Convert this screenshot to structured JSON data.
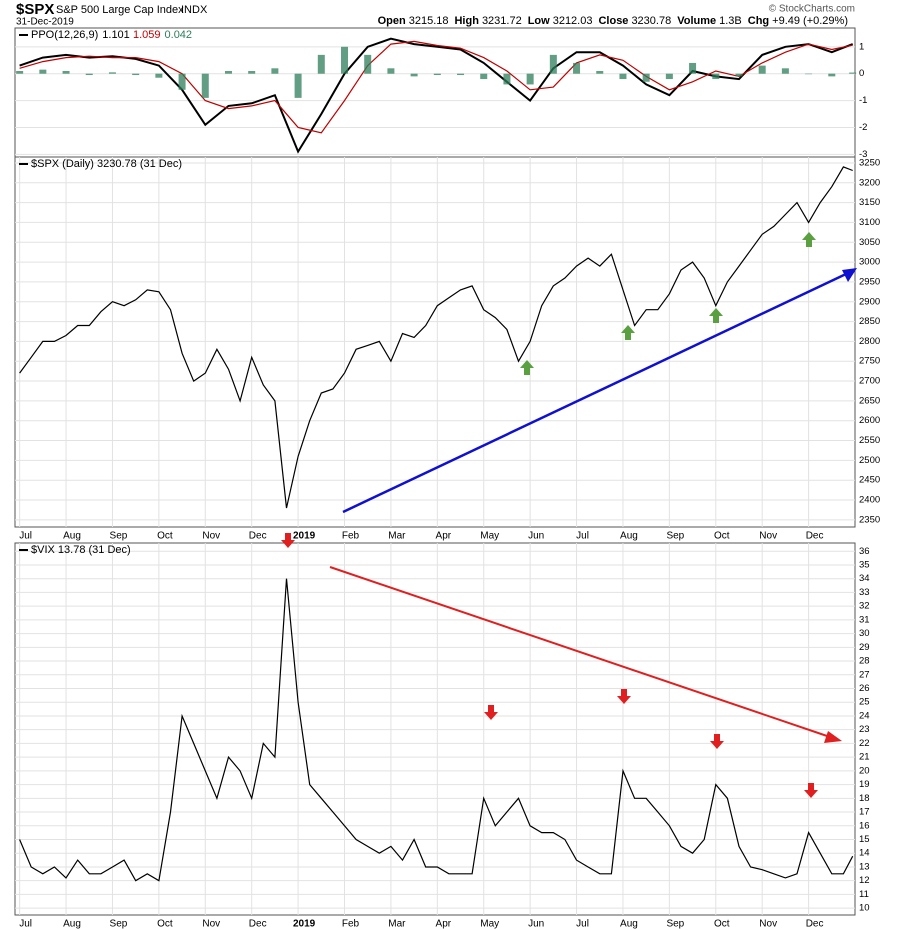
{
  "header": {
    "symbol": "$SPX",
    "name": "S&P 500 Large Cap Index",
    "exchange": "INDX",
    "date": "31-Dec-2019",
    "stats": [
      {
        "label": "Open",
        "value": "3215.18"
      },
      {
        "label": "High",
        "value": "3231.72"
      },
      {
        "label": "Low",
        "value": "3212.03"
      },
      {
        "label": "Close",
        "value": "3230.78"
      },
      {
        "label": "Volume",
        "value": "1.3B"
      },
      {
        "label": "Chg",
        "value": "+9.49 (+0.29%)"
      }
    ],
    "credit": "© StockCharts.com"
  },
  "chart_data": [
    {
      "type": "line",
      "title": "PPO(12,26,9)",
      "x": [
        0,
        0.5,
        1,
        1.5,
        2,
        2.5,
        3,
        3.5,
        4,
        4.5,
        5,
        5.5,
        6,
        6.5,
        7,
        7.5,
        8,
        8.5,
        9,
        9.5,
        10,
        10.5,
        11,
        11.5,
        12,
        12.5,
        13,
        13.5,
        14,
        14.5,
        15,
        15.5,
        16,
        16.5,
        17,
        17.5,
        17.95
      ],
      "series": [
        {
          "color": "#000000",
          "last_label": "1.101",
          "values": [
            0.3,
            0.6,
            0.7,
            0.6,
            0.65,
            0.55,
            0.3,
            -0.6,
            -1.9,
            -1.2,
            -1.1,
            -0.8,
            -2.9,
            -1.5,
            0,
            1,
            1.3,
            1.1,
            1,
            0.9,
            0.4,
            -0.3,
            -1,
            0.2,
            0.8,
            0.8,
            0.3,
            -0.4,
            -0.8,
            0.1,
            -0.1,
            -0.2,
            0.7,
            1,
            1.1,
            0.8,
            1.101
          ]
        },
        {
          "color": "#c00000",
          "last_label": "1.059",
          "values": [
            0.2,
            0.45,
            0.6,
            0.65,
            0.6,
            0.6,
            0.45,
            0,
            -1,
            -1.3,
            -1.2,
            -1,
            -2,
            -2.2,
            -1,
            0.3,
            1.1,
            1.2,
            1.05,
            0.95,
            0.6,
            0.1,
            -0.6,
            -0.5,
            0.4,
            0.7,
            0.5,
            -0.1,
            -0.6,
            -0.3,
            0.1,
            -0.1,
            0.4,
            0.8,
            1.1,
            0.9,
            1.059
          ]
        },
        {
          "color": "#2e7d5b",
          "kind": "histogram",
          "last_label": "0.042",
          "values": [
            0.1,
            0.15,
            0.1,
            -0.05,
            0.05,
            -0.05,
            -0.15,
            -0.6,
            -0.9,
            0.1,
            0.1,
            0.2,
            -0.9,
            0.7,
            1,
            0.7,
            0.2,
            -0.1,
            -0.05,
            -0.05,
            -0.2,
            -0.4,
            -0.4,
            0.7,
            0.4,
            0.1,
            -0.2,
            -0.3,
            -0.2,
            0.4,
            -0.2,
            -0.1,
            0.3,
            0.2,
            0,
            -0.1,
            0.042
          ]
        }
      ],
      "xlim": [
        -0.1,
        18.0
      ],
      "ylim": [
        -3.1,
        1.7
      ],
      "yticks": [
        -3,
        -2,
        -1,
        0,
        1
      ],
      "grid": true
    },
    {
      "type": "line",
      "title": "$SPX (Daily) 3230.78 (31 Dec)",
      "x": [
        0,
        0.25,
        0.5,
        0.75,
        1,
        1.25,
        1.5,
        1.75,
        2,
        2.25,
        2.5,
        2.75,
        3,
        3.25,
        3.5,
        3.75,
        4,
        4.25,
        4.5,
        4.75,
        5,
        5.25,
        5.5,
        5.75,
        6,
        6.25,
        6.5,
        6.75,
        7,
        7.25,
        7.5,
        7.75,
        8,
        8.25,
        8.5,
        8.75,
        9,
        9.25,
        9.5,
        9.75,
        10,
        10.25,
        10.5,
        10.75,
        11,
        11.25,
        11.5,
        11.75,
        12,
        12.25,
        12.5,
        12.75,
        13,
        13.25,
        13.5,
        13.75,
        14,
        14.25,
        14.5,
        14.75,
        15,
        15.25,
        15.5,
        15.75,
        16,
        16.25,
        16.5,
        16.75,
        17,
        17.25,
        17.5,
        17.75,
        17.95
      ],
      "series": [
        {
          "color": "#000000",
          "values": [
            2720,
            2760,
            2800,
            2800,
            2815,
            2840,
            2840,
            2875,
            2900,
            2890,
            2905,
            2930,
            2925,
            2880,
            2770,
            2700,
            2720,
            2780,
            2730,
            2650,
            2760,
            2690,
            2650,
            2380,
            2510,
            2600,
            2670,
            2680,
            2720,
            2780,
            2790,
            2800,
            2750,
            2820,
            2810,
            2840,
            2890,
            2910,
            2930,
            2940,
            2880,
            2860,
            2830,
            2750,
            2800,
            2890,
            2940,
            2960,
            2990,
            3010,
            2990,
            3020,
            2930,
            2840,
            2880,
            2880,
            2920,
            2980,
            3000,
            2960,
            2890,
            2950,
            2990,
            3030,
            3070,
            3090,
            3120,
            3150,
            3100,
            3150,
            3190,
            3240,
            3231
          ]
        }
      ],
      "xlim": [
        -0.1,
        18.0
      ],
      "ylim": [
        2332,
        3265
      ],
      "yticks": [
        2350,
        2400,
        2450,
        2500,
        2550,
        2600,
        2650,
        2700,
        2750,
        2800,
        2850,
        2900,
        2950,
        3000,
        3050,
        3100,
        3150,
        3200,
        3250
      ],
      "xticks": [
        {
          "value": 0,
          "label": "Jul"
        },
        {
          "value": 1,
          "label": "Aug"
        },
        {
          "value": 2,
          "label": "Sep"
        },
        {
          "value": 3,
          "label": "Oct"
        },
        {
          "value": 4,
          "label": "Nov"
        },
        {
          "value": 5,
          "label": "Dec"
        },
        {
          "value": 6,
          "label": "2019"
        },
        {
          "value": 7,
          "label": "Feb"
        },
        {
          "value": 8,
          "label": "Mar"
        },
        {
          "value": 9,
          "label": "Apr"
        },
        {
          "value": 10,
          "label": "May"
        },
        {
          "value": 11,
          "label": "Jun"
        },
        {
          "value": 12,
          "label": "Jul"
        },
        {
          "value": 13,
          "label": "Aug"
        },
        {
          "value": 14,
          "label": "Sep"
        },
        {
          "value": 15,
          "label": "Oct"
        },
        {
          "value": 16,
          "label": "Nov"
        },
        {
          "value": 17,
          "label": "Dec"
        }
      ],
      "grid": true
    },
    {
      "type": "line",
      "title": "$VIX 13.78 (31 Dec)",
      "x": [
        0,
        0.25,
        0.5,
        0.75,
        1,
        1.25,
        1.5,
        1.75,
        2,
        2.25,
        2.5,
        2.75,
        3,
        3.25,
        3.5,
        3.75,
        4,
        4.25,
        4.5,
        4.75,
        5,
        5.25,
        5.5,
        5.75,
        6,
        6.25,
        6.5,
        6.75,
        7,
        7.25,
        7.5,
        7.75,
        8,
        8.25,
        8.5,
        8.75,
        9,
        9.25,
        9.5,
        9.75,
        10,
        10.25,
        10.5,
        10.75,
        11,
        11.25,
        11.5,
        11.75,
        12,
        12.25,
        12.5,
        12.75,
        13,
        13.25,
        13.5,
        13.75,
        14,
        14.25,
        14.5,
        14.75,
        15,
        15.25,
        15.5,
        15.75,
        16,
        16.25,
        16.5,
        16.75,
        17,
        17.25,
        17.5,
        17.75,
        17.95
      ],
      "series": [
        {
          "color": "#000000",
          "values": [
            15,
            13,
            12.5,
            13,
            12.2,
            13.5,
            12.5,
            12.5,
            13,
            13.5,
            12,
            12.5,
            12,
            17,
            24,
            22,
            20,
            18,
            21,
            20,
            18,
            22,
            21,
            34,
            25,
            19,
            18,
            17,
            16,
            15,
            14.5,
            14,
            14.5,
            13.5,
            15,
            13,
            13,
            12.5,
            12.5,
            12.5,
            18,
            16,
            17,
            18,
            16,
            15.5,
            15.5,
            15,
            13.5,
            13,
            12.5,
            12.5,
            20,
            18,
            18,
            17,
            16,
            14.5,
            14,
            15,
            19,
            18,
            14.5,
            13,
            12.8,
            12.5,
            12.2,
            12.5,
            15.5,
            14,
            12.5,
            12.5,
            13.78
          ]
        }
      ],
      "xlim": [
        -0.1,
        18.0
      ],
      "ylim": [
        9.5,
        36.6
      ],
      "yticks": [
        10,
        11,
        12,
        13,
        14,
        15,
        16,
        17,
        18,
        19,
        20,
        21,
        22,
        23,
        24,
        25,
        26,
        27,
        28,
        29,
        30,
        31,
        32,
        33,
        34,
        35,
        36
      ],
      "xticks": [
        {
          "value": 0,
          "label": "Jul"
        },
        {
          "value": 1,
          "label": "Aug"
        },
        {
          "value": 2,
          "label": "Sep"
        },
        {
          "value": 3,
          "label": "Oct"
        },
        {
          "value": 4,
          "label": "Nov"
        },
        {
          "value": 5,
          "label": "Dec"
        },
        {
          "value": 6,
          "label": "2019"
        },
        {
          "value": 7,
          "label": "Feb"
        },
        {
          "value": 8,
          "label": "Mar"
        },
        {
          "value": 9,
          "label": "Apr"
        },
        {
          "value": 10,
          "label": "May"
        },
        {
          "value": 11,
          "label": "Jun"
        },
        {
          "value": 12,
          "label": "Jul"
        },
        {
          "value": 13,
          "label": "Aug"
        },
        {
          "value": 14,
          "label": "Sep"
        },
        {
          "value": 15,
          "label": "Oct"
        },
        {
          "value": 16,
          "label": "Nov"
        },
        {
          "value": 17,
          "label": "Dec"
        }
      ],
      "grid": true
    }
  ]
}
